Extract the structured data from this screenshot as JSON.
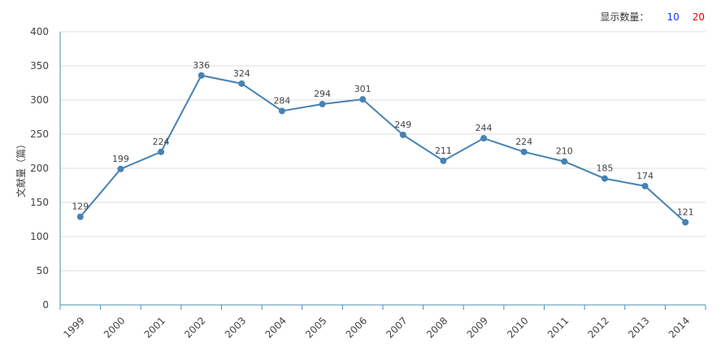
{
  "controls": {
    "label": "显示数量：",
    "option_10": "10",
    "option_20": "20",
    "option_10_color": "#1a33ff",
    "option_20_color": "#e60000"
  },
  "chart_data": {
    "type": "line",
    "title": "",
    "xlabel": "",
    "ylabel": "文献量（篇）",
    "ylim": [
      0,
      400
    ],
    "yticks": [
      0,
      50,
      100,
      150,
      200,
      250,
      300,
      350,
      400
    ],
    "grid": true,
    "line_color": "#4682b4",
    "categories": [
      "1999",
      "2000",
      "2001",
      "2002",
      "2003",
      "2004",
      "2005",
      "2006",
      "2007",
      "2008",
      "2009",
      "2010",
      "2011",
      "2012",
      "2013",
      "2014"
    ],
    "values": [
      129,
      199,
      224,
      336,
      324,
      284,
      294,
      301,
      249,
      211,
      244,
      224,
      210,
      185,
      174,
      121
    ]
  }
}
